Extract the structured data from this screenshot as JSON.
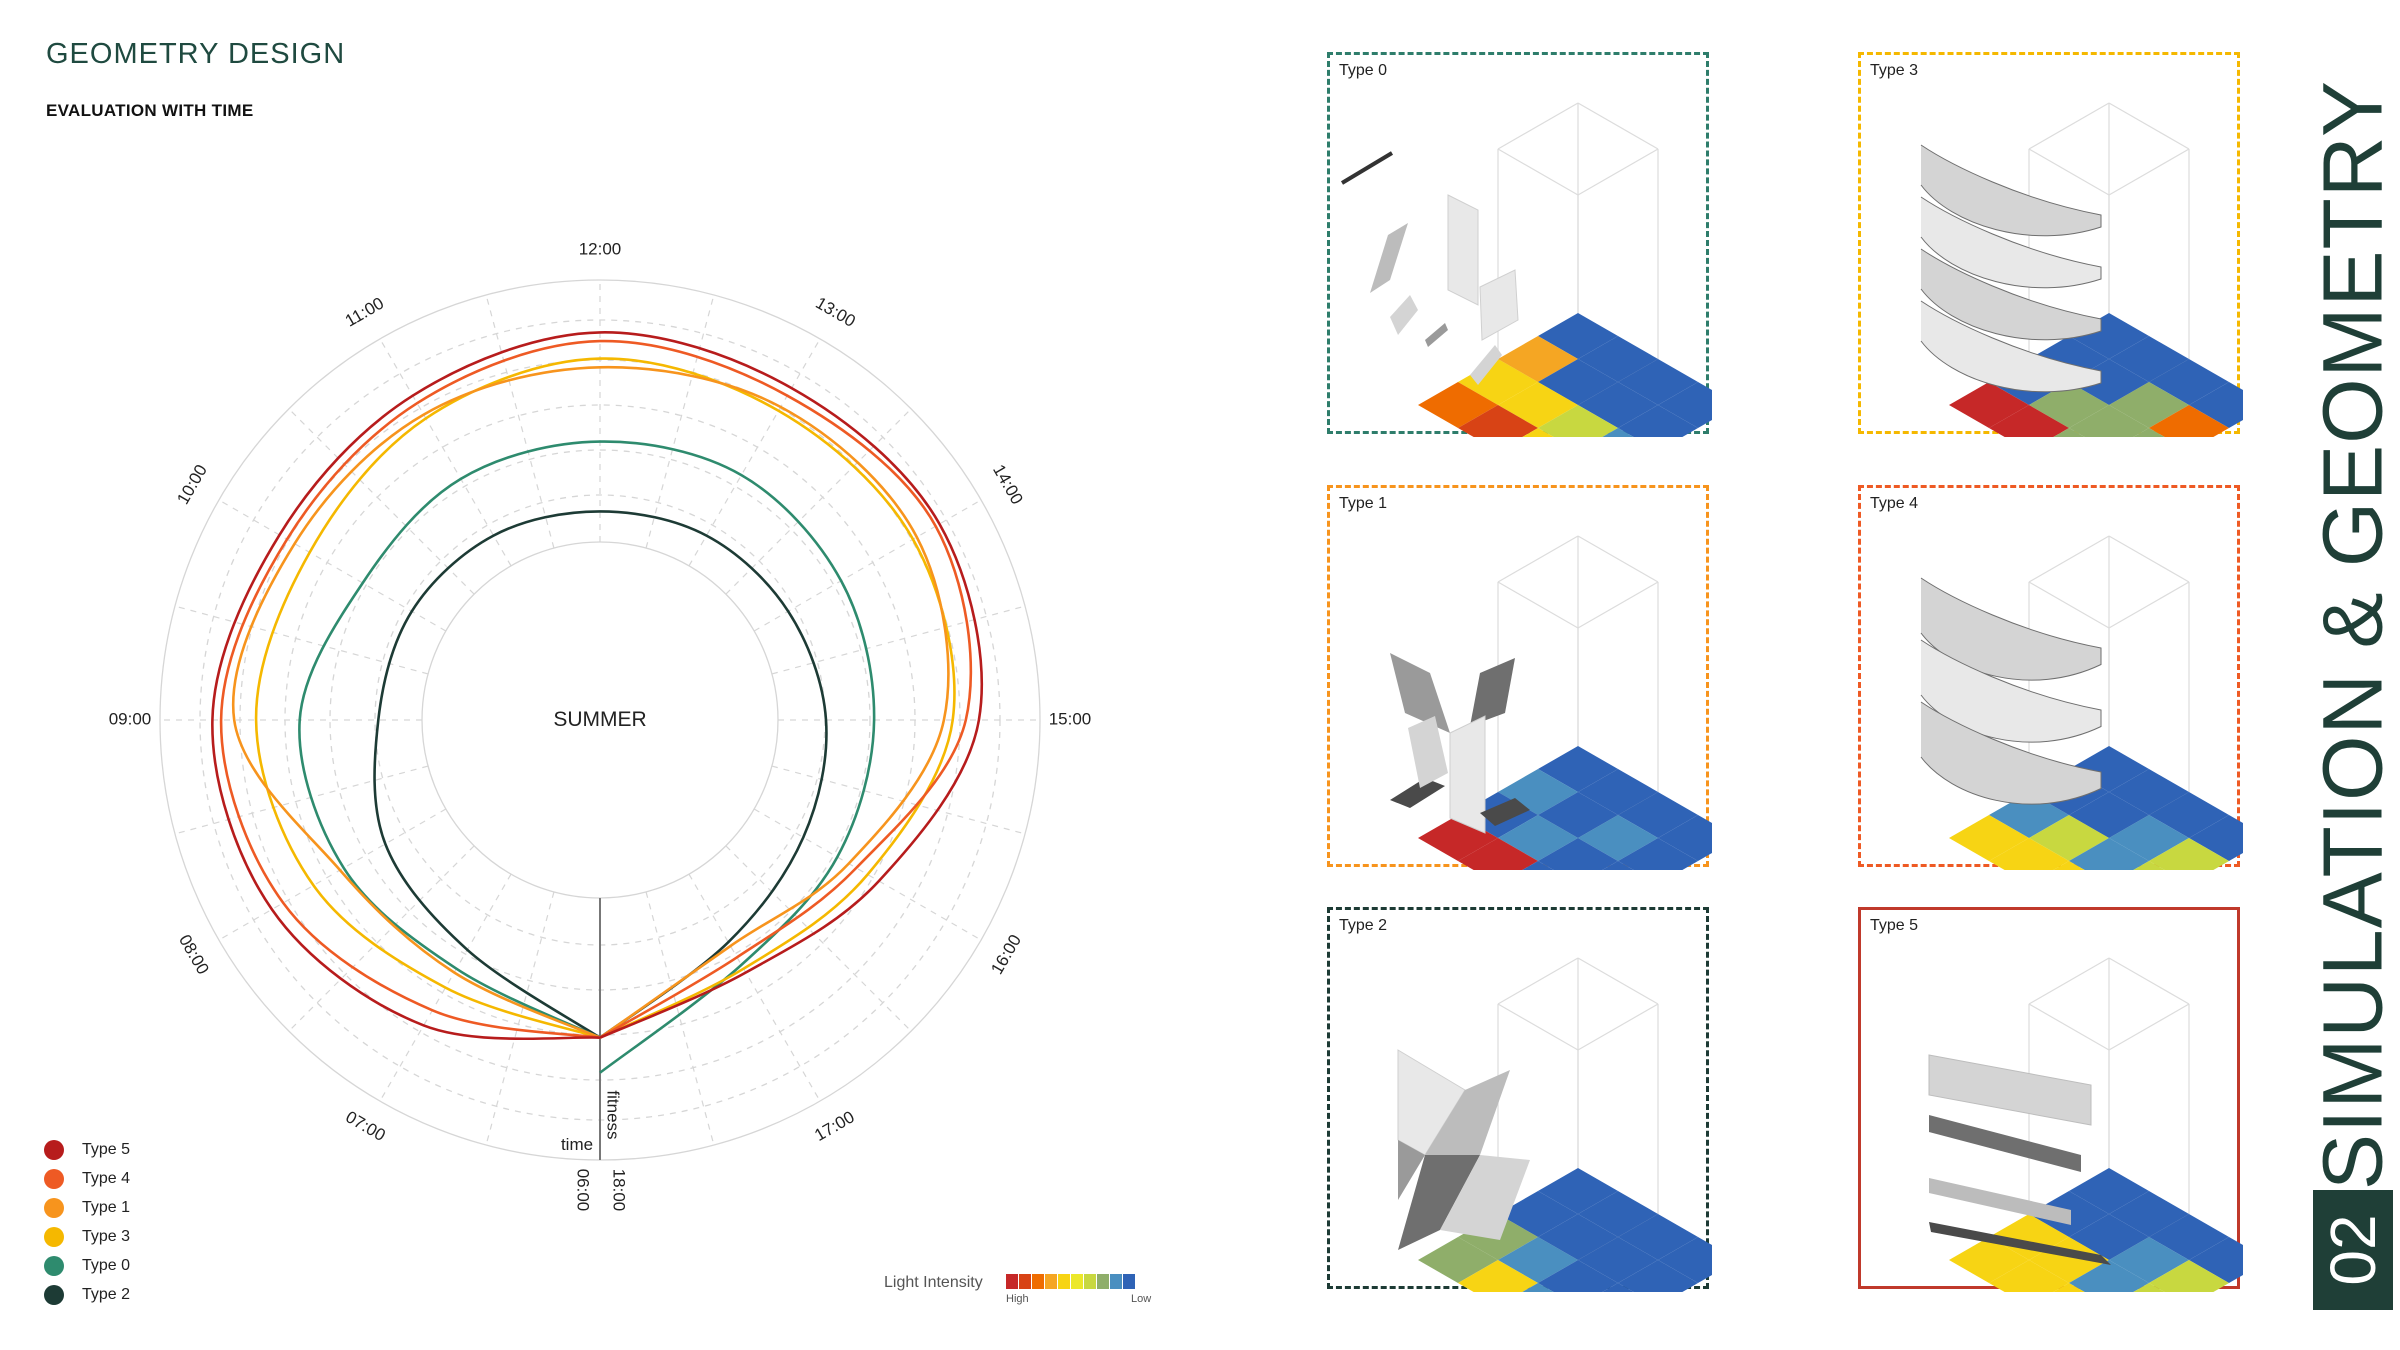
{
  "header": {
    "title": "GEOMETRY DESIGN",
    "subtitle": "EVALUATION WITH TIME"
  },
  "chart_data": {
    "type": "polar-line",
    "center_label": "SUMMER",
    "time_labels": [
      "06:00",
      "07:00",
      "08:00",
      "09:00",
      "10:00",
      "11:00",
      "12:00",
      "13:00",
      "14:00",
      "15:00",
      "16:00",
      "17:00",
      "18:00"
    ],
    "axis_labels": {
      "time": "time",
      "fitness": "fitness"
    },
    "grid": true,
    "series": [
      {
        "name": "Type 5",
        "color": "#b71c1c",
        "values": [
          0.62,
          0.7,
          0.76,
          0.78,
          0.74,
          0.75,
          0.78,
          0.77,
          0.79,
          0.76,
          0.63,
          0.56,
          0.62
        ]
      },
      {
        "name": "Type 4",
        "color": "#ee5a24",
        "values": [
          0.62,
          0.66,
          0.73,
          0.76,
          0.72,
          0.73,
          0.76,
          0.75,
          0.78,
          0.73,
          0.57,
          0.52,
          0.62
        ]
      },
      {
        "name": "Type 1",
        "color": "#f7941d",
        "values": [
          0.62,
          0.56,
          0.58,
          0.73,
          0.7,
          0.7,
          0.7,
          0.72,
          0.73,
          0.68,
          0.55,
          0.49,
          0.62
        ]
      },
      {
        "name": "Type 3",
        "color": "#f5b800",
        "values": [
          0.62,
          0.6,
          0.65,
          0.68,
          0.66,
          0.69,
          0.72,
          0.71,
          0.72,
          0.7,
          0.6,
          0.55,
          0.62
        ]
      },
      {
        "name": "Type 0",
        "color": "#2e8b6e",
        "values": [
          0.62,
          0.55,
          0.57,
          0.58,
          0.52,
          0.53,
          0.53,
          0.54,
          0.53,
          0.52,
          0.52,
          0.54,
          0.7
        ]
      },
      {
        "name": "Type 2",
        "color": "#1d3b35",
        "values": [
          0.62,
          0.5,
          0.46,
          0.4,
          0.39,
          0.38,
          0.37,
          0.38,
          0.39,
          0.41,
          0.43,
          0.48,
          0.62
        ]
      }
    ]
  },
  "legend": [
    {
      "label": "Type 5",
      "color": "#b71c1c"
    },
    {
      "label": "Type 4",
      "color": "#ee5a24"
    },
    {
      "label": "Type 1",
      "color": "#f7941d"
    },
    {
      "label": "Type 3",
      "color": "#f5b800"
    },
    {
      "label": "Type 0",
      "color": "#2e8b6e"
    },
    {
      "label": "Type 2",
      "color": "#1d3b35"
    }
  ],
  "light_intensity": {
    "label": "Light Intensity",
    "high": "High",
    "low": "Low",
    "colors": [
      "#c62828",
      "#d84315",
      "#ef6c00",
      "#f5a623",
      "#f7d414",
      "#ece82a",
      "#c8d840",
      "#8fae6a",
      "#4a8fc0",
      "#2f63b6"
    ]
  },
  "panels": [
    {
      "label": "Type 0",
      "border_color": "#2e7d6b",
      "border_style": "dashed"
    },
    {
      "label": "Type 3",
      "border_color": "#f5b800",
      "border_style": "dashed"
    },
    {
      "label": "Type 1",
      "border_color": "#f7941d",
      "border_style": "dashed"
    },
    {
      "label": "Type 4",
      "border_color": "#ee5a24",
      "border_style": "dashed"
    },
    {
      "label": "Type 2",
      "border_color": "#1d3b35",
      "border_style": "dashed"
    },
    {
      "label": "Type 5",
      "border_color": "#c0392b",
      "border_style": "solid"
    }
  ],
  "side": {
    "number": "02",
    "text": "SIMULATION & GEOMETRY"
  }
}
